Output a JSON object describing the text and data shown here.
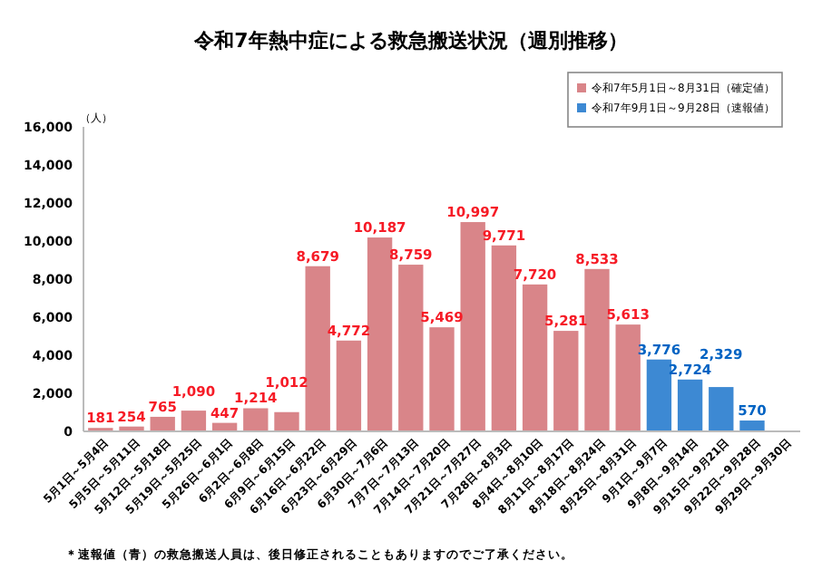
{
  "chart_data": {
    "type": "bar",
    "title": "令和7年熱中症による救急搬送状況（週別推移）",
    "ylabel": "（人）",
    "categories": [
      "5月1日～5月4日",
      "5月5日～5月11日",
      "5月12日～5月18日",
      "5月19日～5月25日",
      "5月26日～6月1日",
      "6月2日～6月8日",
      "6月9日～6月15日",
      "6月16日～6月22日",
      "6月23日～6月29日",
      "6月30日～7月6日",
      "7月7日～7月13日",
      "7月14日～7月20日",
      "7月21日～7月27日",
      "7月28日～8月3日",
      "8月4日～8月10日",
      "8月11日～8月17日",
      "8月18日～8月24日",
      "8月25日～8月31日",
      "9月1日～9月7日",
      "9月8日～9月14日",
      "9月15日～9月21日",
      "9月22日～9月28日",
      "9月29日～9月30日"
    ],
    "series": [
      {
        "name": "令和7年5月1日～8月31日（確定値）",
        "color": "#d98589",
        "values": [
          181,
          254,
          765,
          1090,
          447,
          1214,
          1012,
          8679,
          4772,
          10187,
          8759,
          5469,
          10997,
          9771,
          7720,
          5281,
          8533,
          5613,
          null,
          null,
          null,
          null,
          null
        ]
      },
      {
        "name": "令和7年9月1日～9月28日（速報値）",
        "color": "#3d89d3",
        "values": [
          null,
          null,
          null,
          null,
          null,
          null,
          null,
          null,
          null,
          null,
          null,
          null,
          null,
          null,
          null,
          null,
          null,
          null,
          3776,
          2724,
          2329,
          570,
          null
        ]
      }
    ],
    "value_labels": [
      [
        "181",
        "254",
        "765",
        "1,090",
        "447",
        "1,214",
        "1,012",
        "8,679",
        "4,772",
        "10,187",
        "8,759",
        "5,469",
        "10,997",
        "9,771",
        "7,720",
        "5,281",
        "8,533",
        "5,613",
        null,
        null,
        null,
        null,
        null
      ],
      [
        null,
        null,
        null,
        null,
        null,
        null,
        null,
        null,
        null,
        null,
        null,
        null,
        null,
        null,
        null,
        null,
        null,
        null,
        "3,776",
        "2,724",
        "2,329",
        "570",
        null
      ]
    ],
    "stacked": true,
    "ylim": [
      0,
      16000
    ],
    "yticks": [
      {
        "value": 0,
        "label": "0"
      },
      {
        "value": 2000,
        "label": "2,000"
      },
      {
        "value": 4000,
        "label": "4,000"
      },
      {
        "value": 6000,
        "label": "6,000"
      },
      {
        "value": 8000,
        "label": "8,000"
      },
      {
        "value": 10000,
        "label": "10,000"
      },
      {
        "value": 12000,
        "label": "12,000"
      },
      {
        "value": 14000,
        "label": "14,000"
      },
      {
        "value": 16000,
        "label": "16,000"
      }
    ],
    "grid": false,
    "legend": "top right",
    "annotations": [
      "＊速報値（青）の救急搬送人員は、後日修正されることもありますのでご了承ください。"
    ]
  }
}
